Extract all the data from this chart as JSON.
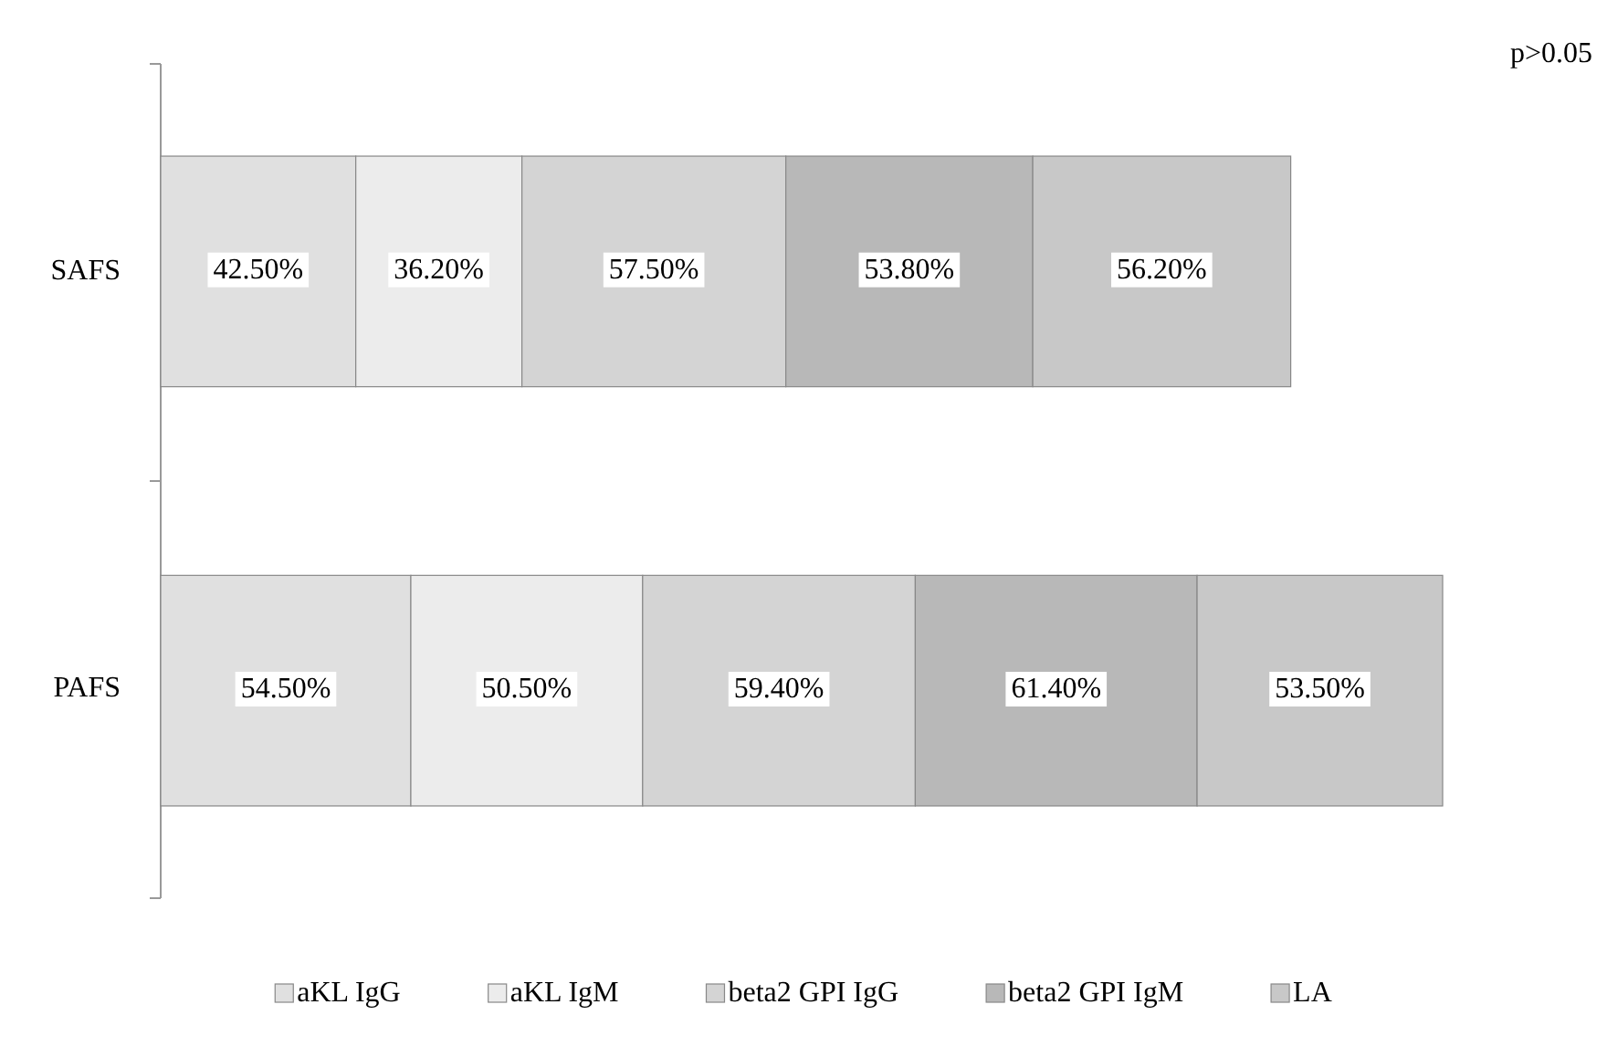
{
  "chart_data": {
    "type": "bar",
    "orientation": "horizontal",
    "stacked": true,
    "data_labels": true,
    "legend": "bottom",
    "categories": [
      "SAFS",
      "PAFS"
    ],
    "series": [
      {
        "name": "aKL IgG",
        "color": "#e0e0e0",
        "values": [
          42.5,
          54.5
        ],
        "value_labels": [
          "42.50%",
          "54.50%"
        ]
      },
      {
        "name": "aKL IgM",
        "color": "#ececec",
        "values": [
          36.2,
          50.5
        ],
        "value_labels": [
          "36.20%",
          "50.50%"
        ]
      },
      {
        "name": "beta2 GPI IgG",
        "color": "#d4d4d4",
        "values": [
          57.5,
          59.4
        ],
        "value_labels": [
          "57.50%",
          "59.40%"
        ]
      },
      {
        "name": "beta2 GPI IgM",
        "color": "#b8b8b8",
        "values": [
          53.8,
          61.4
        ],
        "value_labels": [
          "53.80%",
          "61.40%"
        ]
      },
      {
        "name": "LA",
        "color": "#c8c8c8",
        "values": [
          56.2,
          53.5
        ],
        "value_labels": [
          "56.20%",
          "53.50%"
        ]
      }
    ],
    "annotations": [
      "p>0.05"
    ]
  }
}
